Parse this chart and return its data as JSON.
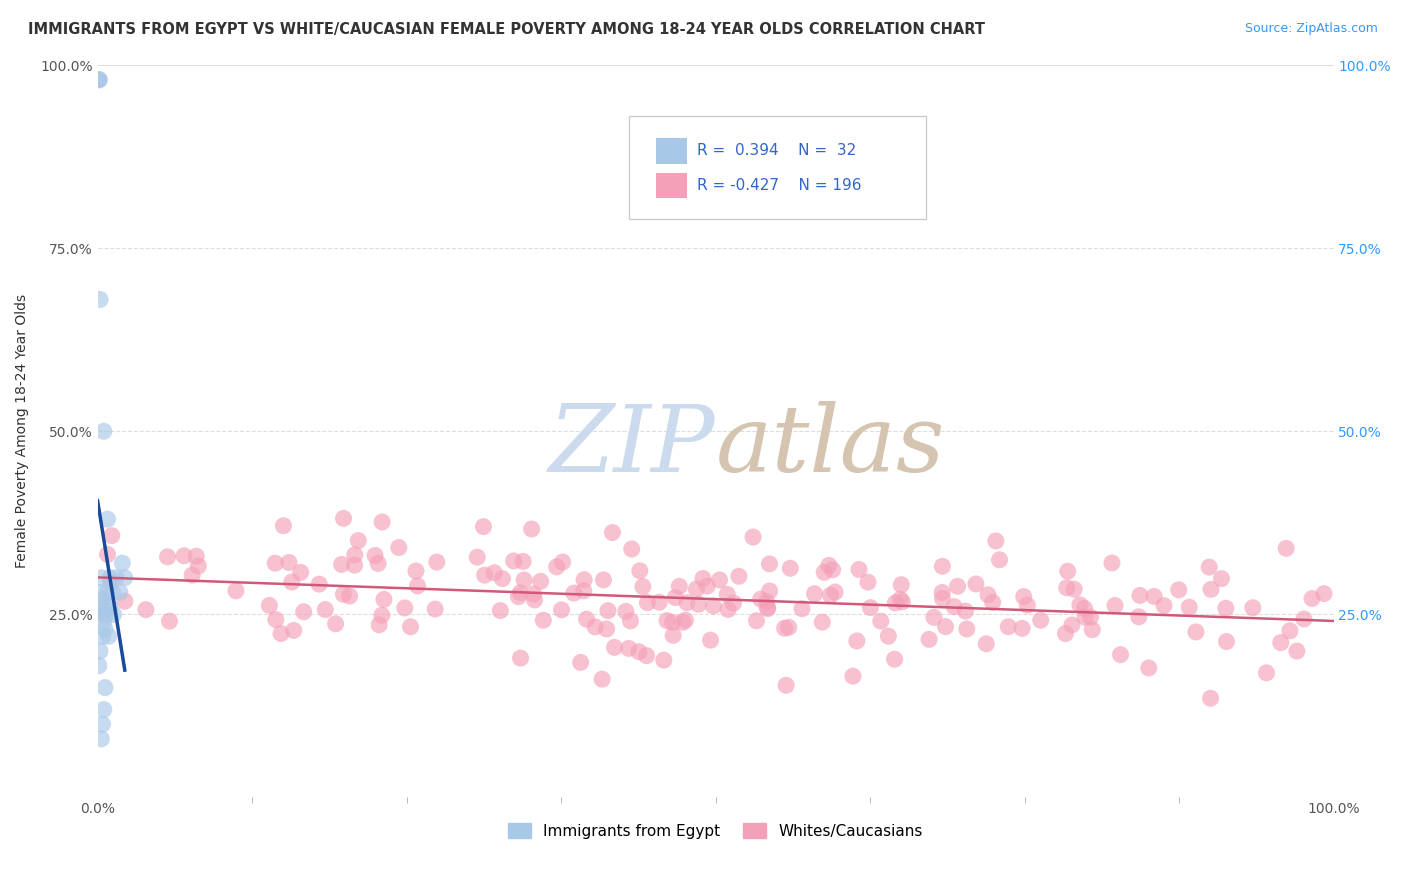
{
  "title": "IMMIGRANTS FROM EGYPT VS WHITE/CAUCASIAN FEMALE POVERTY AMONG 18-24 YEAR OLDS CORRELATION CHART",
  "source": "Source: ZipAtlas.com",
  "ylabel": "Female Poverty Among 18-24 Year Olds",
  "grid_color": "#dddddd",
  "grid_style": "--",
  "background_color": "#ffffff",
  "blue_color": "#a8c8e8",
  "pink_color": "#f4a0b8",
  "blue_line_color": "#1a4a9a",
  "pink_line_color": "#d05878",
  "watermark_zip_color": "#c8d8ee",
  "watermark_atlas_color": "#d8c8b8",
  "title_fontsize": 10.5,
  "source_fontsize": 9,
  "axis_label_fontsize": 10,
  "tick_fontsize": 10,
  "legend_fontsize": 11,
  "note_r1": "R =  0.394",
  "note_n1": "N =  32",
  "note_r2": "R = -0.427",
  "note_n2": "N = 196"
}
